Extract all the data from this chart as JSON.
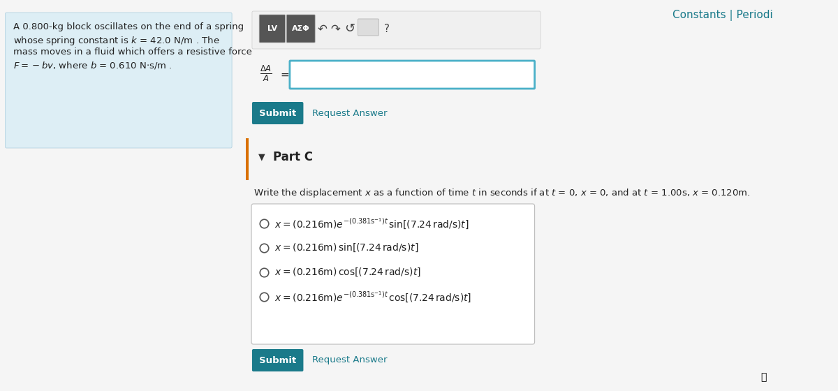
{
  "title": "Constants | Periodi",
  "title_color": "#1a7a8a",
  "bg_color": "#f5f5f5",
  "left_panel_color": "#ddeef5",
  "left_panel_text": "A 0.800-kg block oscillates on the end of a spring\nwhose spring constant is k = 42.0 N/m . The\nmass moves in a fluid which offers a resistive force\nF = −bv, where b = 0.610 N·s/m .",
  "part_label": "Part C",
  "part_color": "#d97000",
  "question_text": "Write the displacement x as a function of time t in seconds if at t = 0, x = 0, and at t = 1.00s, x = 0.120m.",
  "choices": [
    "x = (0.216m)e⁻⁺⁰⋅³⁸¹ˢ⁻¹⁻ᵗ sin[(7.24rad/s)t]",
    "x = (0.216m) sin[(7.24rad/s)t]",
    "x = (0.216m) cos[(7.24rad/s)t]",
    "x = (0.216m)e⁻⁺⁰⋅³⁸¹ˢ⁻¹⁻ᵗ cos[(7.24rad/s)t]"
  ],
  "submit_bg": "#1a7a8a",
  "submit_text_color": "white",
  "request_answer_color": "#1a7a8a",
  "toolbar_bg": "#e0e0e0",
  "input_border": "#4ab0c8",
  "orange_bar_color": "#d97000"
}
